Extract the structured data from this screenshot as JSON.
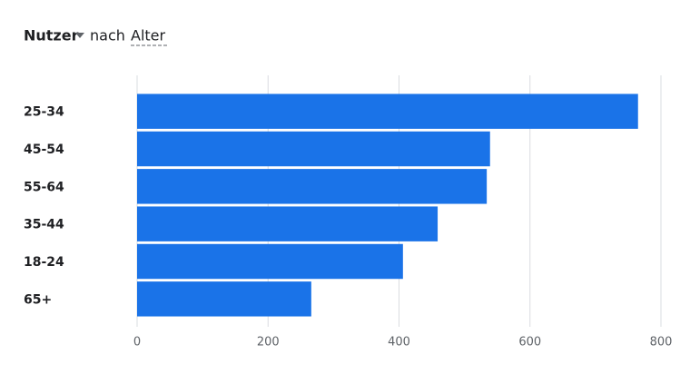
{
  "chart_data": {
    "type": "bar",
    "horizontal": true,
    "metric": "Nutzer",
    "connector": "nach",
    "dimension": "Alter",
    "categories": [
      "25-34",
      "45-54",
      "55-64",
      "35-44",
      "18-24",
      "65+"
    ],
    "values": [
      765,
      539,
      534,
      459,
      406,
      266
    ],
    "color": "#1a73e8",
    "xlim": [
      0,
      800
    ],
    "xticks": [
      0,
      200,
      400,
      600,
      800
    ],
    "grid": true
  }
}
